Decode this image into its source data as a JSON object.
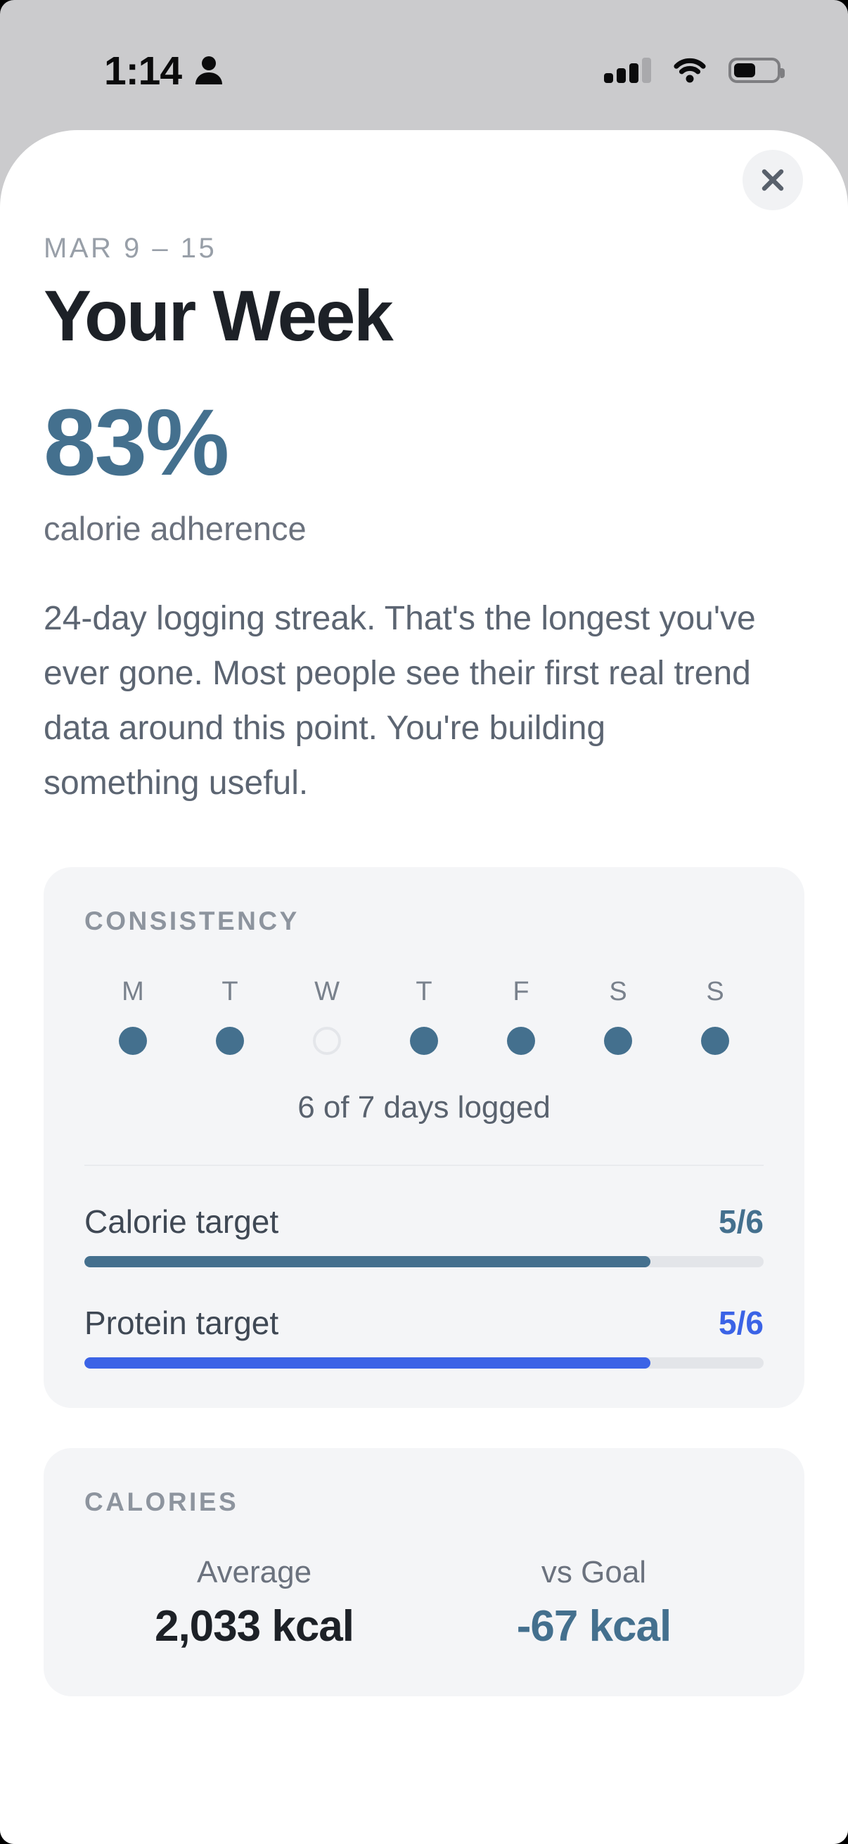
{
  "colors": {
    "accent_teal": "#44708E",
    "accent_blue": "#3B63E6",
    "backdrop": "#CBCBCD",
    "card_bg": "#F4F5F7",
    "text_dark": "#1D2127",
    "text_body": "#5C6572",
    "text_muted": "#8D949E"
  },
  "status_bar": {
    "time": "1:14",
    "signal_bars_filled": 3,
    "signal_bars_total": 4,
    "battery_percent_visual": 45
  },
  "sheet": {
    "date_range": "MAR 9 – 15",
    "title": "Your Week",
    "metric_value": "83%",
    "metric_label": "calorie adherence",
    "message": "24-day logging streak. That's the longest you've ever gone. Most people see their first real trend data around this point. You're building something useful."
  },
  "consistency": {
    "section_label": "CONSISTENCY",
    "days": [
      {
        "label": "M",
        "logged": true
      },
      {
        "label": "T",
        "logged": true
      },
      {
        "label": "W",
        "logged": false
      },
      {
        "label": "T",
        "logged": true
      },
      {
        "label": "F",
        "logged": true
      },
      {
        "label": "S",
        "logged": true
      },
      {
        "label": "S",
        "logged": true
      }
    ],
    "summary": "6 of 7 days logged",
    "targets": [
      {
        "label": "Calorie target",
        "value": "5/6",
        "completed": 5,
        "total": 6,
        "color": "teal"
      },
      {
        "label": "Protein target",
        "value": "5/6",
        "completed": 5,
        "total": 6,
        "color": "blue"
      }
    ]
  },
  "calories": {
    "section_label": "CALORIES",
    "stats": [
      {
        "label": "Average",
        "value": "2,033 kcal",
        "emphasis": "dark"
      },
      {
        "label": "vs Goal",
        "value": "-67 kcal",
        "emphasis": "teal"
      }
    ]
  }
}
